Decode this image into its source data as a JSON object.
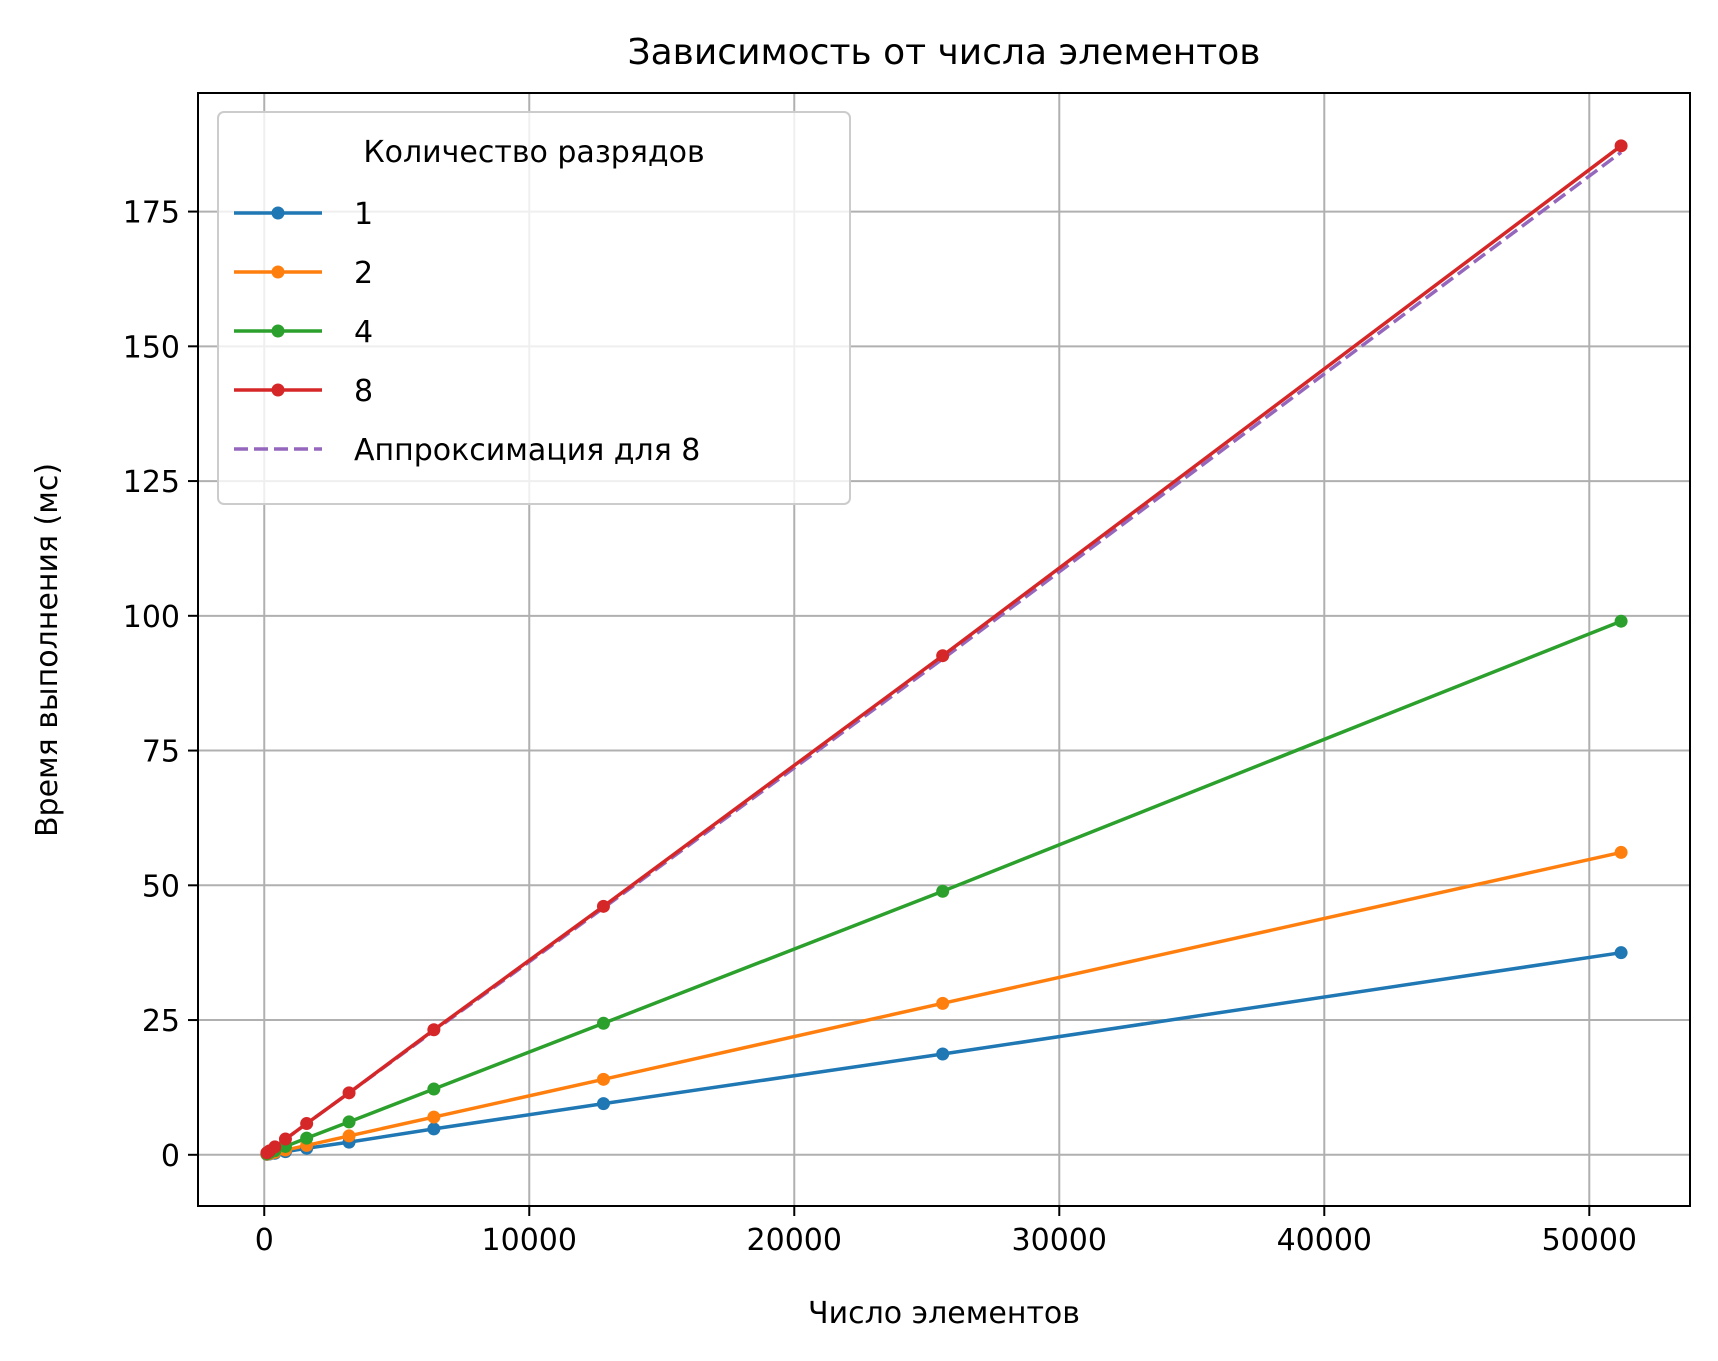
{
  "chart_data": {
    "type": "line",
    "title": "Зависимость от числа элементов",
    "xlabel": "Число элементов",
    "ylabel": "Время выполнения (мс)",
    "xlim": [
      -2500,
      53800
    ],
    "ylim": [
      -9.5,
      197
    ],
    "xticks": [
      0,
      10000,
      20000,
      30000,
      40000,
      50000
    ],
    "yticks": [
      0,
      25,
      50,
      75,
      100,
      125,
      150,
      175
    ],
    "grid": true,
    "legend": {
      "title": "Количество разрядов",
      "placement": "top-left"
    },
    "x": [
      100,
      200,
      400,
      800,
      1600,
      3200,
      6400,
      12800,
      25600,
      51200
    ],
    "series": [
      {
        "name": "1",
        "color": "#1f77b4",
        "style": "solid",
        "markers": true,
        "values": [
          0.07,
          0.15,
          0.29,
          0.58,
          1.2,
          2.35,
          4.8,
          9.5,
          18.7,
          37.5
        ]
      },
      {
        "name": "2",
        "color": "#ff7f0e",
        "style": "solid",
        "markers": true,
        "values": [
          0.11,
          0.22,
          0.44,
          0.88,
          1.75,
          3.5,
          7.0,
          14.0,
          28.1,
          56.1
        ]
      },
      {
        "name": "4",
        "color": "#2ca02c",
        "style": "solid",
        "markers": true,
        "values": [
          0.19,
          0.39,
          0.77,
          1.55,
          3.1,
          6.1,
          12.2,
          24.4,
          48.9,
          99.0
        ]
      },
      {
        "name": "8",
        "color": "#d62728",
        "style": "solid",
        "markers": true,
        "values": [
          0.37,
          0.73,
          1.46,
          2.92,
          5.8,
          11.5,
          23.2,
          46.1,
          92.6,
          187.2
        ]
      },
      {
        "name": "Аппроксимация для 8",
        "color": "#9467bd",
        "style": "dashed",
        "markers": false,
        "values": [
          0.36,
          0.73,
          1.45,
          2.9,
          5.8,
          11.5,
          23.0,
          45.8,
          92.0,
          186.0
        ]
      }
    ]
  }
}
